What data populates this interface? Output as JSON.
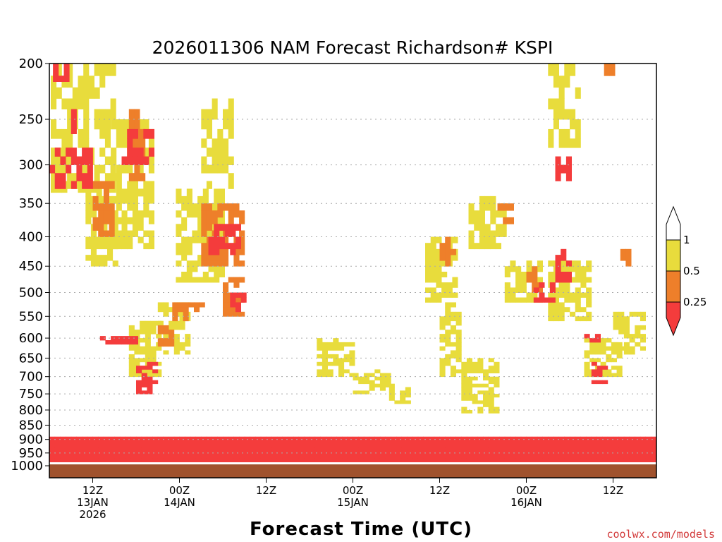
{
  "chart_data": {
    "type": "heatmap",
    "title": "2026011306 NAM Forecast Richardson# KSPI",
    "xlabel": "Forecast Time (UTC)",
    "ylabel": "",
    "credit": "coolwx.com/models",
    "y_axis": {
      "unit": "hPa",
      "range": [
        1000,
        200
      ],
      "ticks": [
        200,
        250,
        300,
        350,
        400,
        450,
        500,
        550,
        600,
        650,
        700,
        750,
        800,
        850,
        900,
        950,
        1000
      ]
    },
    "x_axis": {
      "unit": "forecast hour from 2026-01-13 06Z",
      "range": [
        0,
        84
      ],
      "ticks": [
        {
          "hour": 6,
          "lines": [
            "12Z",
            "13JAN",
            "2026"
          ]
        },
        {
          "hour": 18,
          "lines": [
            "00Z",
            "14JAN"
          ]
        },
        {
          "hour": 30,
          "lines": [
            "12Z"
          ]
        },
        {
          "hour": 42,
          "lines": [
            "00Z",
            "15JAN"
          ]
        },
        {
          "hour": 54,
          "lines": [
            "12Z"
          ]
        },
        {
          "hour": 66,
          "lines": [
            "00Z",
            "16JAN"
          ]
        },
        {
          "hour": 78,
          "lines": [
            "12Z"
          ]
        }
      ]
    },
    "legend": {
      "placement": "right",
      "labels": [
        "1",
        "0.5",
        "0.25"
      ],
      "bins": [
        {
          "range": "> 1",
          "color": "#ffffff"
        },
        {
          "range": "0.5 - 1",
          "color": "#e8dc3c"
        },
        {
          "range": "0.25 - 0.5",
          "color": "#ee7f2a"
        },
        {
          "range": "< 0.25",
          "color": "#f43c3c"
        }
      ]
    },
    "colors": {
      "high": "#e8dc3c",
      "mid": "#ee7f2a",
      "low": "#f43c3c",
      "ground": "#a0522d",
      "grid": "#aaaaaa"
    },
    "regions": [
      {
        "bin": "high",
        "t": [
          0.2,
          8.5
        ],
        "p": [
          200,
          335
        ]
      },
      {
        "bin": "high",
        "t": [
          8.5,
          14
        ],
        "p": [
          250,
          420
        ]
      },
      {
        "bin": "high",
        "t": [
          5,
          9
        ],
        "p": [
          330,
          450
        ]
      },
      {
        "bin": "high",
        "t": [
          11,
          15
        ],
        "p": [
          560,
          700
        ]
      },
      {
        "bin": "high",
        "t": [
          15,
          19
        ],
        "p": [
          520,
          640
        ]
      },
      {
        "bin": "high",
        "t": [
          17.5,
          24
        ],
        "p": [
          330,
          480
        ]
      },
      {
        "bin": "high",
        "t": [
          21,
          25
        ],
        "p": [
          230,
          330
        ]
      },
      {
        "bin": "high",
        "t": [
          37,
          42
        ],
        "p": [
          600,
          700
        ]
      },
      {
        "bin": "high",
        "t": [
          42,
          47
        ],
        "p": [
          680,
          750
        ]
      },
      {
        "bin": "high",
        "t": [
          47,
          50
        ],
        "p": [
          720,
          780
        ]
      },
      {
        "bin": "high",
        "t": [
          52,
          56
        ],
        "p": [
          400,
          520
        ]
      },
      {
        "bin": "high",
        "t": [
          54,
          57
        ],
        "p": [
          520,
          700
        ]
      },
      {
        "bin": "high",
        "t": [
          57,
          62
        ],
        "p": [
          650,
          810
        ]
      },
      {
        "bin": "high",
        "t": [
          58,
          63
        ],
        "p": [
          340,
          420
        ]
      },
      {
        "bin": "high",
        "t": [
          63,
          68
        ],
        "p": [
          440,
          520
        ]
      },
      {
        "bin": "high",
        "t": [
          69,
          73
        ],
        "p": [
          200,
          280
        ]
      },
      {
        "bin": "high",
        "t": [
          69,
          75
        ],
        "p": [
          440,
          560
        ]
      },
      {
        "bin": "high",
        "t": [
          74,
          79
        ],
        "p": [
          600,
          700
        ]
      },
      {
        "bin": "high",
        "t": [
          78,
          82
        ],
        "p": [
          540,
          640
        ]
      },
      {
        "bin": "mid",
        "t": [
          1,
          3
        ],
        "p": [
          200,
          210
        ]
      },
      {
        "bin": "mid",
        "t": [
          6,
          9
        ],
        "p": [
          320,
          400
        ]
      },
      {
        "bin": "mid",
        "t": [
          11,
          13
        ],
        "p": [
          240,
          320
        ]
      },
      {
        "bin": "mid",
        "t": [
          21,
          27
        ],
        "p": [
          350,
          450
        ]
      },
      {
        "bin": "mid",
        "t": [
          24,
          27
        ],
        "p": [
          470,
          550
        ]
      },
      {
        "bin": "mid",
        "t": [
          17,
          21
        ],
        "p": [
          520,
          560
        ]
      },
      {
        "bin": "mid",
        "t": [
          15,
          17
        ],
        "p": [
          570,
          620
        ]
      },
      {
        "bin": "mid",
        "t": [
          54,
          56
        ],
        "p": [
          400,
          450
        ]
      },
      {
        "bin": "mid",
        "t": [
          62,
          64
        ],
        "p": [
          350,
          380
        ]
      },
      {
        "bin": "mid",
        "t": [
          66,
          68
        ],
        "p": [
          450,
          500
        ]
      },
      {
        "bin": "mid",
        "t": [
          76,
          78
        ],
        "p": [
          200,
          210
        ]
      },
      {
        "bin": "mid",
        "t": [
          79,
          80
        ],
        "p": [
          420,
          450
        ]
      },
      {
        "bin": "low",
        "t": [
          0.5,
          2.5
        ],
        "p": [
          200,
          215
        ]
      },
      {
        "bin": "low",
        "t": [
          0,
          6
        ],
        "p": [
          280,
          330
        ]
      },
      {
        "bin": "low",
        "t": [
          1.5,
          3.5
        ],
        "p": [
          240,
          265
        ]
      },
      {
        "bin": "low",
        "t": [
          10,
          14
        ],
        "p": [
          260,
          300
        ]
      },
      {
        "bin": "low",
        "t": [
          22,
          26
        ],
        "p": [
          380,
          430
        ]
      },
      {
        "bin": "low",
        "t": [
          25,
          27
        ],
        "p": [
          500,
          550
        ]
      },
      {
        "bin": "low",
        "t": [
          7,
          12
        ],
        "p": [
          595,
          615
        ]
      },
      {
        "bin": "low",
        "t": [
          12,
          14.5
        ],
        "p": [
          660,
          750
        ]
      },
      {
        "bin": "low",
        "t": [
          70,
          72
        ],
        "p": [
          290,
          320
        ]
      },
      {
        "bin": "low",
        "t": [
          67,
          70
        ],
        "p": [
          480,
          520
        ]
      },
      {
        "bin": "low",
        "t": [
          70,
          72
        ],
        "p": [
          400,
          480
        ]
      },
      {
        "bin": "low",
        "t": [
          74,
          76
        ],
        "p": [
          590,
          610
        ]
      },
      {
        "bin": "low",
        "t": [
          75,
          77
        ],
        "p": [
          660,
          720
        ]
      },
      {
        "bin": "low",
        "t": [
          0,
          84
        ],
        "p": [
          890,
          985
        ]
      }
    ]
  }
}
